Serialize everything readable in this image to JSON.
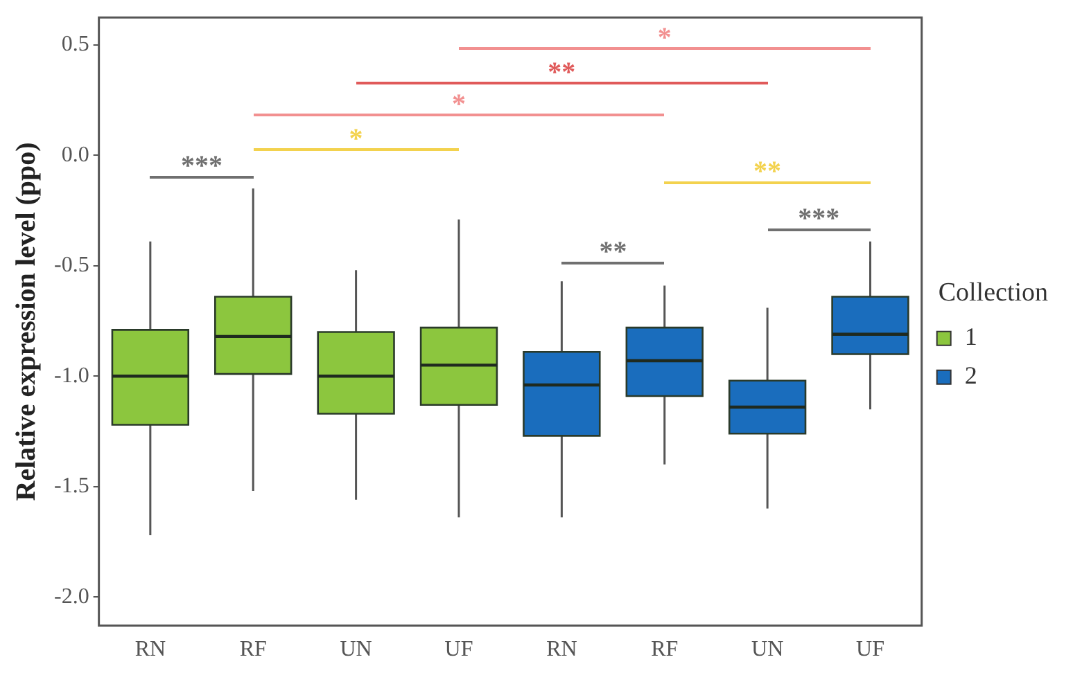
{
  "chart_data": {
    "type": "box",
    "ylabel": "Relative expression level (ppo)",
    "legend_title": "Collection",
    "legend": "right",
    "grid": false,
    "categories": [
      "RN",
      "RF",
      "UN",
      "UF",
      "RN",
      "RF",
      "UN",
      "UF"
    ],
    "ylim": [
      -2.13,
      0.625
    ],
    "yticks": [
      0.5,
      {
        "value": 0,
        "label": "0.0"
      },
      {
        "value": -0.5,
        "label": "-0.5"
      },
      {
        "value": -1,
        "label": "-1.0"
      },
      {
        "value": -1.5,
        "label": "-1.5"
      },
      {
        "value": -2,
        "label": "-2.0"
      }
    ],
    "series": [
      {
        "name": "1",
        "color": "#8cc63e",
        "boxes": [
          {
            "low": -1.72,
            "q1": -1.22,
            "median": -1.0,
            "q3": -0.79,
            "high": -0.39
          },
          {
            "low": -1.52,
            "q1": -0.99,
            "median": -0.82,
            "q3": -0.64,
            "high": -0.15
          },
          {
            "low": -1.56,
            "q1": -1.17,
            "median": -1.0,
            "q3": -0.8,
            "high": -0.52
          },
          {
            "low": -1.64,
            "q1": -1.13,
            "median": -0.95,
            "q3": -0.78,
            "high": -0.29
          },
          null,
          null,
          null,
          null
        ]
      },
      {
        "name": "2",
        "color": "#1a6dbd",
        "boxes": [
          null,
          null,
          null,
          null,
          {
            "low": -1.64,
            "q1": -1.27,
            "median": -1.04,
            "q3": -0.89,
            "high": -0.57
          },
          {
            "low": -1.4,
            "q1": -1.09,
            "median": -0.93,
            "q3": -0.78,
            "high": -0.59
          },
          {
            "low": -1.6,
            "q1": -1.26,
            "median": -1.14,
            "q3": -1.02,
            "high": -0.69
          },
          {
            "low": -1.15,
            "q1": -0.9,
            "median": -0.81,
            "q3": -0.64,
            "high": -0.39
          }
        ]
      }
    ],
    "annotations": [
      "***",
      "*",
      "*",
      "**",
      "*",
      "**",
      "**",
      "***"
    ]
  }
}
